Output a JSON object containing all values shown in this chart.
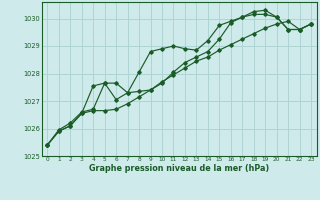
{
  "title": "Graphe pression niveau de la mer (hPa)",
  "background_color": "#ceeaea",
  "grid_color": "#aed4d4",
  "line_color": "#1a5c28",
  "xlim": [
    -0.5,
    23.5
  ],
  "ylim": [
    1025.0,
    1030.6
  ],
  "yticks": [
    1025,
    1026,
    1027,
    1028,
    1029,
    1030
  ],
  "xticks": [
    0,
    1,
    2,
    3,
    4,
    5,
    6,
    7,
    8,
    9,
    10,
    11,
    12,
    13,
    14,
    15,
    16,
    17,
    18,
    19,
    20,
    21,
    22,
    23
  ],
  "series": [
    [
      1025.4,
      1025.9,
      1026.1,
      1026.55,
      1027.55,
      1027.65,
      1027.65,
      1027.3,
      1028.05,
      1028.8,
      1028.9,
      1029.0,
      1028.9,
      1028.85,
      1029.2,
      1029.75,
      1029.9,
      1030.05,
      1030.25,
      1030.3,
      1030.05,
      1029.6,
      1029.6,
      1029.8
    ],
    [
      1025.4,
      1025.95,
      1026.2,
      1026.6,
      1026.7,
      1027.65,
      1027.05,
      1027.3,
      1027.35,
      1027.4,
      1027.65,
      1028.05,
      1028.4,
      1028.6,
      1028.8,
      1029.25,
      1029.85,
      1030.05,
      1030.15,
      1030.15,
      1030.05,
      1029.6,
      1029.6,
      1029.8
    ],
    [
      1025.4,
      1025.9,
      1026.1,
      1026.55,
      1026.65,
      1026.65,
      1026.7,
      1026.9,
      1027.15,
      1027.4,
      1027.7,
      1027.95,
      1028.2,
      1028.45,
      1028.6,
      1028.85,
      1029.05,
      1029.25,
      1029.45,
      1029.65,
      1029.8,
      1029.9,
      1029.6,
      1029.8
    ]
  ]
}
